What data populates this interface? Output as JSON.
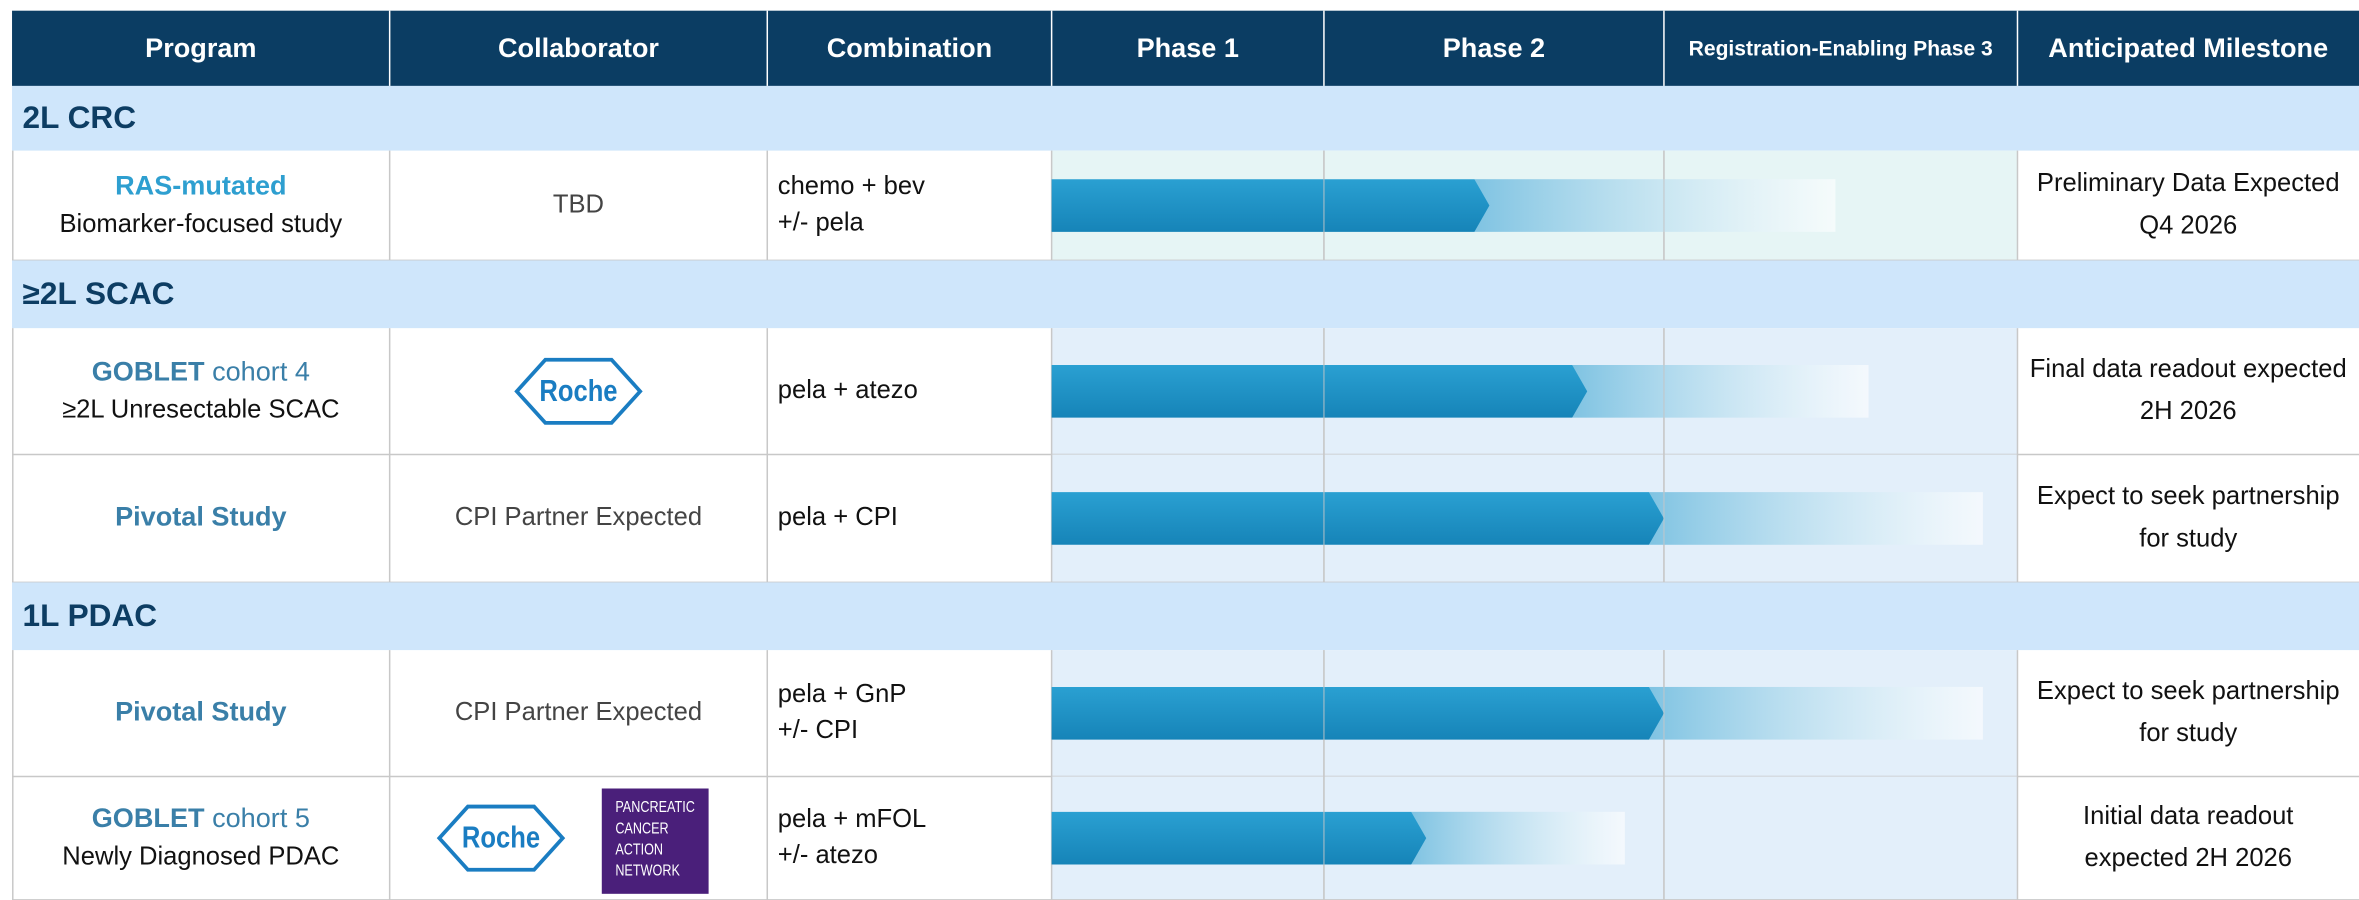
{
  "header": {
    "columns": [
      "Program",
      "Collaborator",
      "Combination",
      "Phase 1",
      "Phase 2",
      "Registration-Enabling Phase 3",
      "Anticipated Milestone"
    ]
  },
  "sections": [
    {
      "title": "2L CRC",
      "rows": [
        {
          "program": {
            "bold": "RAS-mutated",
            "sub": "Biomarker-focused study"
          },
          "collaborator": {
            "text": "TBD"
          },
          "combination": [
            "chemo + bev",
            "+/- pela"
          ],
          "milestone": [
            "Preliminary Data Expected",
            "Q4 2026"
          ]
        }
      ]
    },
    {
      "title": "≥2L SCAC",
      "rows": [
        {
          "program": {
            "bold": "GOBLET",
            "rest": " cohort 4",
            "sub": "≥2L Unresectable SCAC"
          },
          "collaborator": {
            "roche_logo": "Roche"
          },
          "combination": [
            "pela + atezo"
          ],
          "milestone": [
            "Final data readout expected",
            "2H 2026"
          ]
        },
        {
          "program": {
            "bold": "Pivotal Study"
          },
          "collaborator": {
            "text": "CPI Partner Expected"
          },
          "combination": [
            "pela + CPI"
          ],
          "milestone": [
            "Expect to seek partnership",
            "for study"
          ]
        }
      ]
    },
    {
      "title": "1L PDAC",
      "rows": [
        {
          "program": {
            "bold": "Pivotal Study"
          },
          "collaborator": {
            "text": "CPI Partner Expected"
          },
          "combination": [
            "pela + GnP",
            "+/- CPI"
          ],
          "milestone": [
            "Expect to seek partnership",
            "for study"
          ]
        },
        {
          "program": {
            "bold": "GOBLET",
            "rest": " cohort 5",
            "sub": "Newly Diagnosed PDAC"
          },
          "collaborator": {
            "roche_logo": "Roche",
            "pancan_logo": [
              "PANCREATIC",
              "CANCER",
              "ACTION",
              "NETWORK"
            ]
          },
          "combination": [
            "pela + mFOL",
            "+/- atezo"
          ],
          "milestone": [
            "Initial data readout",
            "expected 2H 2026"
          ]
        }
      ]
    }
  ]
}
